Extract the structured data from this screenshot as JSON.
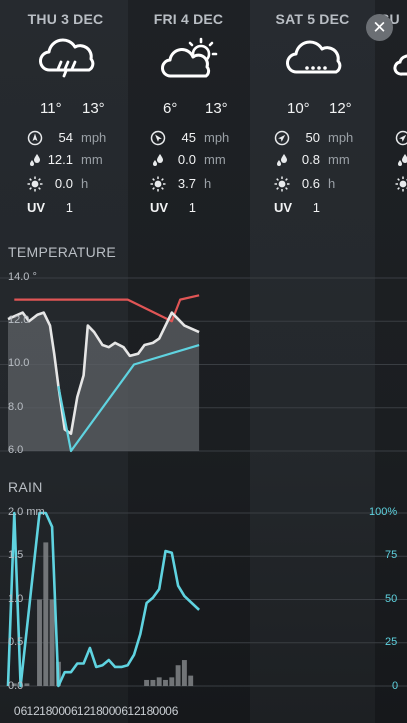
{
  "close": {
    "label": "✕"
  },
  "days": [
    {
      "title": "THU 3 DEC",
      "icon": "rain-cloud-icon",
      "low": "11°",
      "high": "13°",
      "wind": "54",
      "wind_unit": "mph",
      "rain": "12.1",
      "rain_unit": "mm",
      "sun": "0.0",
      "sun_unit": "h",
      "uv_label": "UV",
      "uv": "1"
    },
    {
      "title": "FRI 4 DEC",
      "icon": "sun-behind-cloud-icon",
      "low": "6°",
      "high": "13°",
      "wind": "45",
      "wind_unit": "mph",
      "rain": "0.0",
      "rain_unit": "mm",
      "sun": "3.7",
      "sun_unit": "h",
      "uv_label": "UV",
      "uv": "1"
    },
    {
      "title": "SAT 5 DEC",
      "icon": "drizzle-cloud-icon",
      "low": "10°",
      "high": "12°",
      "wind": "50",
      "wind_unit": "mph",
      "rain": "0.8",
      "rain_unit": "mm",
      "sun": "0.6",
      "sun_unit": "h",
      "uv_label": "UV",
      "uv": "1"
    },
    {
      "title": "SU"
    }
  ],
  "temperature": {
    "title": "TEMPERATURE",
    "ticks": [
      "14.0 °",
      "12.0",
      "10.0",
      "8.0",
      "6.0"
    ]
  },
  "rain": {
    "title": "RAIN",
    "left_ticks": [
      "2.0 mm",
      "1.5",
      "1.0",
      "0.5",
      "0.0"
    ],
    "right_ticks": [
      "100%",
      "75",
      "50",
      "25",
      "0"
    ]
  },
  "x_labels": [
    "06",
    "12",
    "18",
    "00",
    "06",
    "12",
    "18",
    "00",
    "06",
    "12",
    "18",
    "00",
    "06"
  ],
  "chart_data": [
    {
      "type": "line",
      "title": "TEMPERATURE",
      "unit": "°",
      "ylim": [
        6,
        14
      ],
      "y_ticks": [
        14,
        12,
        10,
        8,
        6
      ],
      "series": [
        {
          "color": "#e05555",
          "points": [
            [
              3,
              13.0
            ],
            [
              57,
              13.0
            ],
            [
              78,
              12.0
            ],
            [
              82,
              13.0
            ],
            [
              91,
              13.2
            ]
          ]
        },
        {
          "color": "#e6e6e6",
          "fill": "#5e6266",
          "points": [
            [
              0,
              12.1
            ],
            [
              7,
              12.4
            ],
            [
              10,
              12.0
            ],
            [
              14,
              12.3
            ],
            [
              17,
              12.4
            ],
            [
              20,
              11.8
            ],
            [
              22,
              10.5
            ],
            [
              24,
              9.0
            ],
            [
              27,
              7.0
            ],
            [
              30,
              6.8
            ],
            [
              33,
              8.5
            ],
            [
              36,
              9.5
            ],
            [
              38,
              11.8
            ],
            [
              41,
              11.5
            ],
            [
              45,
              10.9
            ],
            [
              48,
              10.8
            ],
            [
              51,
              11.0
            ],
            [
              55,
              10.8
            ],
            [
              58,
              10.4
            ],
            [
              62,
              10.5
            ],
            [
              65,
              10.9
            ],
            [
              69,
              11.0
            ],
            [
              72,
              11.2
            ],
            [
              75,
              11.8
            ],
            [
              78,
              12.4
            ],
            [
              81,
              12.1
            ],
            [
              84,
              11.8
            ],
            [
              91,
              11.5
            ]
          ]
        },
        {
          "color": "#5fd3e0",
          "points": [
            [
              24,
              9.0
            ],
            [
              30,
              6.0
            ],
            [
              60,
              10.0
            ],
            [
              91,
              10.9
            ]
          ]
        }
      ]
    },
    {
      "type": "bar",
      "title": "RAIN",
      "unit": "mm",
      "ylim": [
        0,
        2
      ],
      "y_ticks": [
        2.0,
        1.5,
        1.0,
        0.5,
        0.0
      ],
      "y2_ticks": [
        "100%",
        "75",
        "50",
        "25",
        "0"
      ],
      "bars": [
        [
          3,
          0.03
        ],
        [
          9,
          0.03
        ],
        [
          15,
          1.0
        ],
        [
          18,
          1.66
        ],
        [
          21,
          1.0
        ],
        [
          24,
          0.28
        ],
        [
          66,
          0.07
        ],
        [
          69,
          0.07
        ],
        [
          72,
          0.1
        ],
        [
          75,
          0.07
        ],
        [
          78,
          0.1
        ],
        [
          81,
          0.24
        ],
        [
          84,
          0.3
        ],
        [
          87,
          0.12
        ]
      ],
      "probability_percent": [
        [
          0,
          0
        ],
        [
          3,
          100
        ],
        [
          6,
          0
        ],
        [
          15,
          100
        ],
        [
          18,
          100
        ],
        [
          21,
          92
        ],
        [
          24,
          0
        ],
        [
          27,
          8
        ],
        [
          30,
          8
        ],
        [
          33,
          13
        ],
        [
          36,
          13
        ],
        [
          39,
          22
        ],
        [
          42,
          11
        ],
        [
          45,
          12
        ],
        [
          48,
          15
        ],
        [
          51,
          11
        ],
        [
          54,
          11
        ],
        [
          57,
          12
        ],
        [
          60,
          18
        ],
        [
          63,
          30
        ],
        [
          66,
          48
        ],
        [
          69,
          51
        ],
        [
          72,
          56
        ],
        [
          75,
          78
        ],
        [
          78,
          77
        ],
        [
          81,
          58
        ],
        [
          84,
          52
        ],
        [
          91,
          44
        ]
      ]
    }
  ]
}
